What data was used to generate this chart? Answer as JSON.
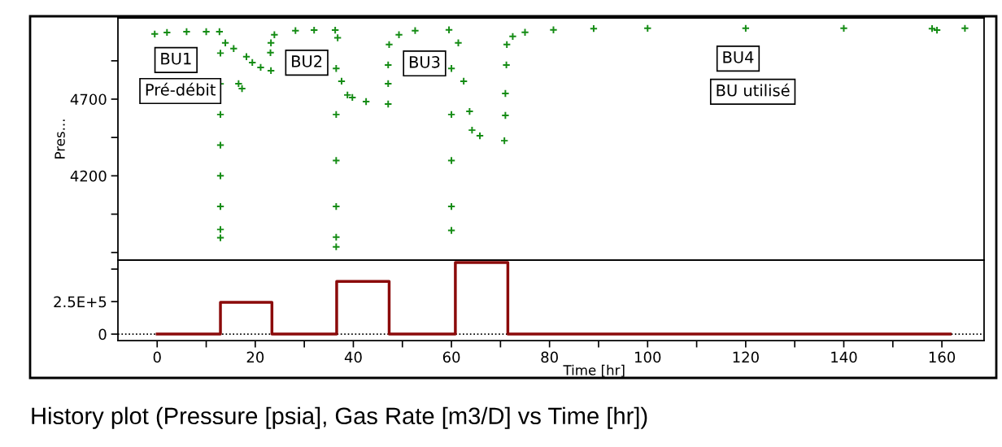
{
  "chart_data": [
    {
      "type": "scatter",
      "ylabel": "Pres...",
      "marker": "cross",
      "tick_labels": "y",
      "grid": false,
      "legend": false,
      "xlim": [
        -8,
        168.6
      ],
      "ylim": [
        3650,
        5230
      ],
      "xticks": [
        0,
        20,
        40,
        60,
        80,
        100,
        120,
        140,
        160
      ],
      "yticks": [
        {
          "value": 3700,
          "label": null
        },
        {
          "value": 3950,
          "label": null
        },
        4200,
        {
          "value": 4450,
          "label": null
        },
        4700,
        {
          "value": 4950,
          "label": null
        }
      ],
      "series": [
        {
          "color": "#148c14",
          "x": [
            -0.5,
            2,
            6,
            10,
            12.7,
            12.9,
            12.9,
            12.9,
            12.9,
            12.9,
            12.9,
            12.9,
            12.9,
            13.9,
            15.6,
            16.6,
            17.3,
            18.2,
            19.4,
            21.1,
            23.2,
            23.1,
            23.2,
            23.9,
            28.2,
            32,
            36.3,
            36.5,
            36.5,
            36.5,
            36.5,
            36.5,
            36.5,
            36.8,
            37.6,
            38.8,
            39.8,
            42.6,
            47.1,
            47.1,
            47.1,
            47.3,
            49.3,
            52.6,
            59.5,
            60,
            60,
            60,
            60,
            60,
            61.4,
            62.5,
            63.7,
            64.2,
            65.8,
            70.8,
            71,
            71,
            71.2,
            71.3,
            72.5,
            75,
            80.8,
            89,
            100,
            120,
            140,
            158,
            159,
            164.7
          ],
          "values": [
            5125,
            5135,
            5140,
            5140,
            5140,
            5000,
            4800,
            4600,
            4400,
            4200,
            4000,
            3850,
            3796,
            5067,
            5030,
            4801,
            4769,
            4977,
            4939,
            4907,
            4886,
            5003,
            5067,
            5120,
            5147,
            5150,
            5150,
            4900,
            4600,
            4300,
            4000,
            3800,
            3737,
            5100,
            4817,
            4727,
            4711,
            4684,
            4668,
            4801,
            4923,
            5056,
            5120,
            5147,
            5152,
            4900,
            4600,
            4300,
            4000,
            3844,
            5067,
            4817,
            4620,
            4498,
            4461,
            4429,
            4594,
            4737,
            4923,
            5056,
            5109,
            5136,
            5152,
            5160,
            5162,
            5162,
            5162,
            5160,
            5150,
            5162
          ]
        }
      ],
      "annotations": [
        "BU1",
        "Pré-débit",
        "BU2",
        "BU3",
        "BU4",
        "BU utilisé"
      ]
    },
    {
      "type": "step",
      "xlabel": "Time [hr]",
      "title": "History plot (Pressure [psia], Gas Rate [m3/D] vs Time [hr])",
      "grid": false,
      "legend": false,
      "xlim": [
        -8,
        168.6
      ],
      "ylim": [
        -50000,
        568750
      ],
      "xticks": [
        0,
        {
          "value": 10,
          "label": null
        },
        20,
        {
          "value": 30,
          "label": null
        },
        40,
        {
          "value": 50,
          "label": null
        },
        60,
        {
          "value": 70,
          "label": null
        },
        80,
        {
          "value": 90,
          "label": null
        },
        100,
        {
          "value": 110,
          "label": null
        },
        120,
        {
          "value": 130,
          "label": null
        },
        140,
        {
          "value": 150,
          "label": null
        },
        160
      ],
      "yticks": [
        0,
        {
          "value": 250000,
          "label": "2.5E+5"
        },
        {
          "value": 500000,
          "label": null
        }
      ],
      "ref_lines": [
        {
          "axis": "y",
          "value": 0,
          "color": "#000000",
          "line_style": "dotted"
        }
      ],
      "series": [
        {
          "color": "#8b0a0a",
          "x": [
            0,
            12.9,
            23.4,
            36.6,
            47.3,
            60.8,
            71.5,
            161.7
          ],
          "values": [
            0,
            245000,
            0,
            406000,
            0,
            550000,
            0,
            0
          ]
        }
      ]
    }
  ]
}
